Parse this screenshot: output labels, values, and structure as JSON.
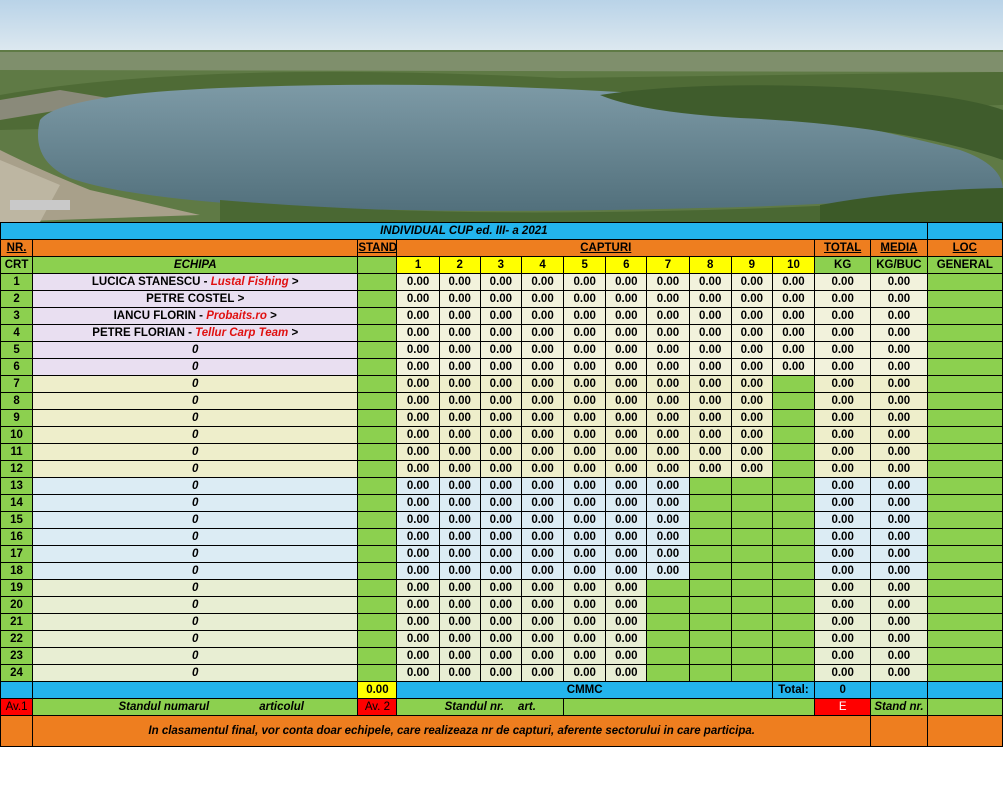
{
  "photo": {
    "description_icon": "lake-aerial-photo"
  },
  "header": {
    "title": "INDIVIDUAL  CUP ed. III- a  2021",
    "nr": "NR.",
    "stand": "STAND",
    "capturi": "CAPTURI",
    "total": "TOTAL",
    "media": "MEDIA",
    "loc": "LOC",
    "crt": "CRT",
    "echipa": "ECHIPA",
    "rounds": [
      "1",
      "2",
      "3",
      "4",
      "5",
      "6",
      "7",
      "8",
      "9",
      "10"
    ],
    "kg": "KG",
    "kgbuc": "KG/BUC",
    "general": "GENERAL"
  },
  "rows": [
    {
      "nr": "1",
      "name": "LUCICA STANESCU -",
      "club": "Lustal Fishing",
      "arrow": ">",
      "rounds": 10,
      "total": "0.00",
      "media": "0.00"
    },
    {
      "nr": "2",
      "name": "PETRE  COSTEL",
      "club": "",
      "arrow": ">",
      "rounds": 10,
      "total": "0.00",
      "media": "0.00"
    },
    {
      "nr": "3",
      "name": "IANCU  FLORIN -",
      "club": "Probaits.ro",
      "arrow": ">",
      "rounds": 10,
      "total": "0.00",
      "media": "0.00"
    },
    {
      "nr": "4",
      "name": "PETRE  FLORIAN -",
      "club": "Tellur Carp Team",
      "arrow": ">",
      "rounds": 10,
      "total": "0.00",
      "media": "0.00"
    },
    {
      "nr": "5",
      "name": "",
      "club": "",
      "arrow": "",
      "zero": "0",
      "rounds": 10,
      "total": "0.00",
      "media": "0.00"
    },
    {
      "nr": "6",
      "name": "",
      "club": "",
      "arrow": "",
      "zero": "0",
      "rounds": 10,
      "total": "0.00",
      "media": "0.00"
    },
    {
      "nr": "7",
      "name": "",
      "club": "",
      "arrow": "",
      "zero": "0",
      "rounds": 9,
      "total": "0.00",
      "media": "0.00"
    },
    {
      "nr": "8",
      "name": "",
      "club": "",
      "arrow": "",
      "zero": "0",
      "rounds": 9,
      "total": "0.00",
      "media": "0.00"
    },
    {
      "nr": "9",
      "name": "",
      "club": "",
      "arrow": "",
      "zero": "0",
      "rounds": 9,
      "total": "0.00",
      "media": "0.00"
    },
    {
      "nr": "10",
      "name": "",
      "club": "",
      "arrow": "",
      "zero": "0",
      "rounds": 9,
      "total": "0.00",
      "media": "0.00"
    },
    {
      "nr": "11",
      "name": "",
      "club": "",
      "arrow": "",
      "zero": "0",
      "rounds": 9,
      "total": "0.00",
      "media": "0.00"
    },
    {
      "nr": "12",
      "name": "",
      "club": "",
      "arrow": "",
      "zero": "0",
      "rounds": 9,
      "total": "0.00",
      "media": "0.00"
    },
    {
      "nr": "13",
      "name": "",
      "club": "",
      "arrow": "",
      "zero": "0",
      "rounds": 7,
      "total": "0.00",
      "media": "0.00"
    },
    {
      "nr": "14",
      "name": "",
      "club": "",
      "arrow": "",
      "zero": "0",
      "rounds": 7,
      "total": "0.00",
      "media": "0.00"
    },
    {
      "nr": "15",
      "name": "",
      "club": "",
      "arrow": "",
      "zero": "0",
      "rounds": 7,
      "total": "0.00",
      "media": "0.00"
    },
    {
      "nr": "16",
      "name": "",
      "club": "",
      "arrow": "",
      "zero": "0",
      "rounds": 7,
      "total": "0.00",
      "media": "0.00"
    },
    {
      "nr": "17",
      "name": "",
      "club": "",
      "arrow": "",
      "zero": "0",
      "rounds": 7,
      "total": "0.00",
      "media": "0.00"
    },
    {
      "nr": "18",
      "name": "",
      "club": "",
      "arrow": "",
      "zero": "0",
      "rounds": 7,
      "total": "0.00",
      "media": "0.00"
    },
    {
      "nr": "19",
      "name": "",
      "club": "",
      "arrow": "",
      "zero": "0",
      "rounds": 6,
      "total": "0.00",
      "media": "0.00"
    },
    {
      "nr": "20",
      "name": "",
      "club": "",
      "arrow": "",
      "zero": "0",
      "rounds": 6,
      "total": "0.00",
      "media": "0.00"
    },
    {
      "nr": "21",
      "name": "",
      "club": "",
      "arrow": "",
      "zero": "0",
      "rounds": 6,
      "total": "0.00",
      "media": "0.00"
    },
    {
      "nr": "22",
      "name": "",
      "club": "",
      "arrow": "",
      "zero": "0",
      "rounds": 6,
      "total": "0.00",
      "media": "0.00"
    },
    {
      "nr": "23",
      "name": "",
      "club": "",
      "arrow": "",
      "zero": "0",
      "rounds": 6,
      "total": "0.00",
      "media": "0.00"
    },
    {
      "nr": "24",
      "name": "",
      "club": "",
      "arrow": "",
      "zero": "0",
      "rounds": 6,
      "total": "0.00",
      "media": "0.00"
    }
  ],
  "cell_value": "0.00",
  "footer": {
    "stand_value": "0.00",
    "cmmc": "CMMC",
    "total_label": "Total:",
    "total_value": "0",
    "av1": "Av.1",
    "standul_numarul": "Standul numarul",
    "articolul": "articolul",
    "av2": "Av. 2",
    "standul_nr": "Standul  nr.",
    "art": "art.",
    "e": "E",
    "stand_nr": "Stand nr.",
    "note": "In clasamentul final, vor conta doar echipele, care realizeaza nr de capturi, aferente sectorului in care participa."
  },
  "colors": {
    "header_blue": "#23b4ec",
    "header_orange": "#ee7e1f",
    "green": "#8cd04f",
    "yellow": "#ffff00",
    "red": "#ff0000"
  }
}
